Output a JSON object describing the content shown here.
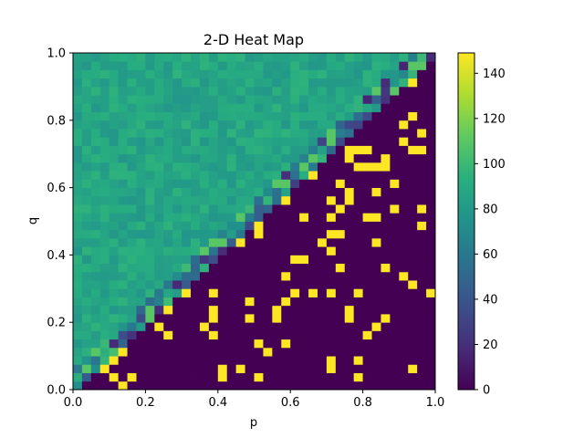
{
  "chart_data": {
    "type": "heatmap",
    "title": "2-D Heat Map",
    "xlabel": "p",
    "ylabel": "q",
    "xlim": [
      0.0,
      1.0
    ],
    "ylim": [
      0.0,
      1.0
    ],
    "x_ticks": [
      "0.0",
      "0.2",
      "0.4",
      "0.6",
      "0.8",
      "1.0"
    ],
    "y_ticks": [
      "0.0",
      "0.2",
      "0.4",
      "0.6",
      "0.8",
      "1.0"
    ],
    "grid_size": [
      40,
      40
    ],
    "colormap": "viridis",
    "color_range": [
      0,
      149
    ],
    "colorbar_ticks": [
      "0",
      "20",
      "40",
      "60",
      "80",
      "100",
      "120",
      "140"
    ],
    "regions": [
      {
        "name": "upper-left (q > p)",
        "typical_value": 85,
        "range": [
          70,
          100
        ]
      },
      {
        "name": "boundary band (q ≈ p)",
        "typical_value": 40,
        "range": [
          15,
          115
        ]
      },
      {
        "name": "lower-right (q < p)",
        "typical_value": 0,
        "occasional_value": 149
      }
    ]
  },
  "colors": {
    "viridis_low": "#440154",
    "viridis_mid": "#21918c",
    "viridis_high": "#fde725"
  }
}
